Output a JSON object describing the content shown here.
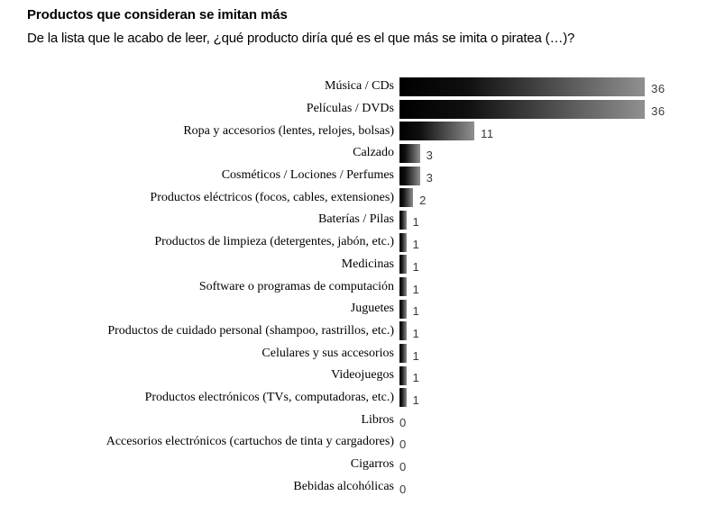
{
  "header": {
    "title": "Productos que consideran se imitan más",
    "subtitle": "De la lista que le acabo de leer, ¿qué producto diría qué es el que más se imita o piratea (…)?"
  },
  "chart_data": {
    "type": "bar",
    "orientation": "horizontal",
    "title": "Productos que consideran se imitan más",
    "subtitle": "De la lista que le acabo de leer, ¿qué producto diría qué es el que más se imita o piratea (…)?",
    "xlabel": "",
    "ylabel": "",
    "xlim": [
      0,
      40
    ],
    "grid": false,
    "legend": false,
    "value_labels": "right-of-bar",
    "bar_gradient": [
      "#000000",
      "#909090"
    ],
    "value_label_color": "#3a3a3a",
    "categories": [
      "Música / CDs",
      "Películas / DVDs",
      "Ropa y accesorios (lentes, relojes, bolsas)",
      "Calzado",
      "Cosméticos / Lociones / Perfumes",
      "Productos eléctricos (focos, cables, extensiones)",
      "Baterías / Pilas",
      "Productos de limpieza (detergentes, jabón, etc.)",
      "Medicinas",
      "Software o programas de computación",
      "Juguetes",
      "Productos de cuidado personal (shampoo, rastrillos, etc.)",
      "Celulares y sus accesorios",
      "Videojuegos",
      "Productos electrónicos (TVs, computadoras, etc.)",
      "Libros",
      "Accesorios electrónicos (cartuchos de tinta y cargadores)",
      "Cigarros",
      "Bebidas alcohólicas"
    ],
    "values": [
      36,
      36,
      11,
      3,
      3,
      2,
      1,
      1,
      1,
      1,
      1,
      1,
      1,
      1,
      1,
      0,
      0,
      0,
      0
    ]
  }
}
